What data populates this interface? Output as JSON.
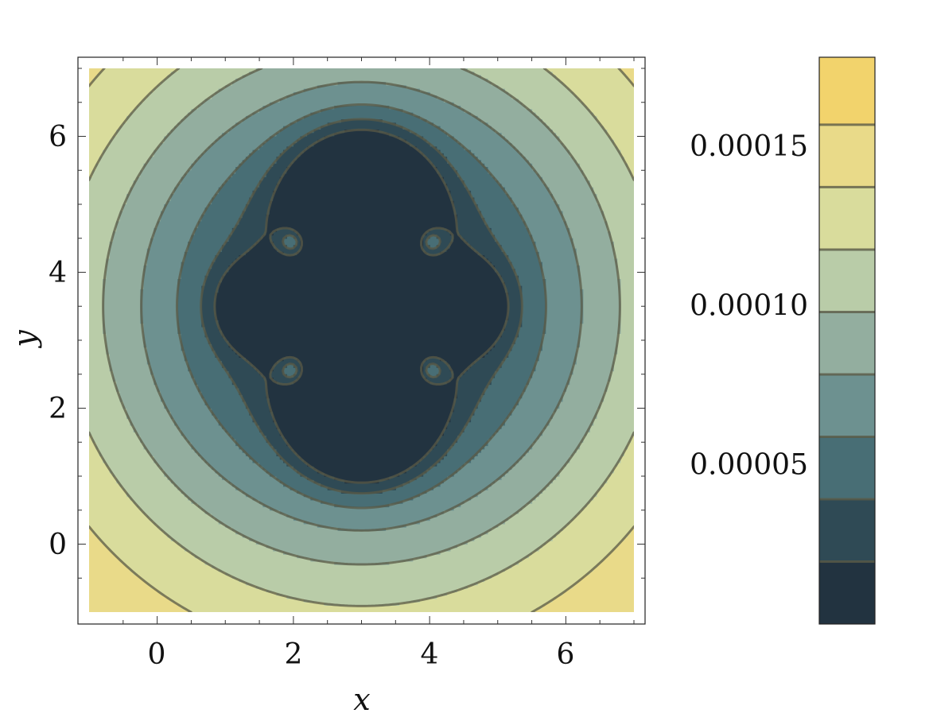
{
  "chart_data": {
    "type": "contour",
    "xlabel": "x",
    "ylabel": "y",
    "xlim": [
      -1,
      7
    ],
    "ylim": [
      -1,
      7
    ],
    "x_ticks": [
      0,
      2,
      4,
      6
    ],
    "y_ticks": [
      0,
      2,
      4,
      6
    ],
    "x_tick_labels": [
      "0",
      "2",
      "4",
      "6"
    ],
    "y_tick_labels": [
      "0",
      "2",
      "4",
      "6"
    ],
    "minima": [
      {
        "x": 3,
        "y": 5
      },
      {
        "x": 3,
        "y": 2
      },
      {
        "x": 1.5,
        "y": 3.5
      },
      {
        "x": 4.5,
        "y": 3.5
      }
    ],
    "local_maxima": [
      {
        "x": 2,
        "y": 4.45
      },
      {
        "x": 4,
        "y": 4.45
      },
      {
        "x": 2,
        "y": 2.55
      },
      {
        "x": 4,
        "y": 2.55
      }
    ],
    "colorbar": {
      "range": [
        0,
        0.000178
      ],
      "levels": [
        1.96e-05,
        3.92e-05,
        5.88e-05,
        7.84e-05,
        9.8e-05,
        0.0001176,
        0.0001372,
        0.0001568
      ],
      "tick_values": [
        5e-05,
        0.0001,
        0.00015
      ],
      "tick_labels": [
        "0.00005",
        "0.00010",
        "0.00015"
      ],
      "colors": [
        "#223340",
        "#2f4a55",
        "#486e75",
        "#6d9190",
        "#93ae9f",
        "#b9cca8",
        "#d9dc9c",
        "#e9da89",
        "#f2d36c"
      ]
    },
    "grid": false,
    "legend": "none"
  }
}
